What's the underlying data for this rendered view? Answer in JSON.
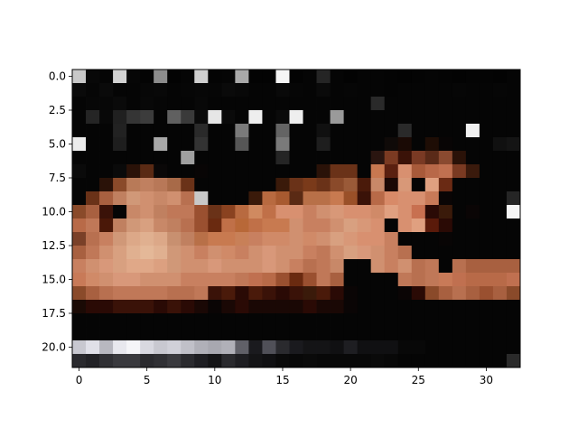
{
  "chart_data": {
    "type": "heatmap",
    "title": "",
    "xlabel": "",
    "ylabel": "",
    "x_range": [
      -0.5,
      32.5
    ],
    "y_range": [
      21.5,
      -0.5
    ],
    "x_ticks": [
      0,
      5,
      10,
      15,
      20,
      25,
      30
    ],
    "x_tick_labels": [
      "0",
      "5",
      "10",
      "15",
      "20",
      "25",
      "30"
    ],
    "y_ticks": [
      0.0,
      2.5,
      5.0,
      7.5,
      10.0,
      12.5,
      15.0,
      17.5,
      20.0
    ],
    "y_tick_labels": [
      "0.0",
      "2.5",
      "5.0",
      "7.5",
      "10.0",
      "12.5",
      "15.0",
      "17.5",
      "20.0"
    ],
    "grid": false,
    "colormap_note": "RGB image pixels",
    "rows": 22,
    "cols": 33,
    "pixels": [
      [
        "#c8c8c8",
        "#080808",
        "#050505",
        "#d2d2d2",
        "#060606",
        "#040404",
        "#8c8c8c",
        "#030303",
        "#050505",
        "#cfcfcf",
        "#040404",
        "#050505",
        "#a9a9a9",
        "#030303",
        "#030303",
        "#f5f5f5",
        "#030303",
        "#050505",
        "#252525",
        "#050505",
        "#030303",
        "#050505",
        "#050505",
        "#040404",
        "#030303",
        "#040404",
        "#050505",
        "#040404",
        "#030303",
        "#040404",
        "#040404",
        "#030303",
        "#050505"
      ],
      [
        "#0a0a0a",
        "#060606",
        "#0a0a0a",
        "#050505",
        "#050505",
        "#070707",
        "#080808",
        "#050505",
        "#060606",
        "#070707",
        "#060606",
        "#0a0a0a",
        "#080808",
        "#050505",
        "#050505",
        "#090909",
        "#060606",
        "#050505",
        "#0a0a0a",
        "#050505",
        "#060606",
        "#050505",
        "#050505",
        "#040404",
        "#050505",
        "#050505",
        "#050505",
        "#050505",
        "#060606",
        "#050505",
        "#050505",
        "#060606",
        "#050505"
      ],
      [
        "#050505",
        "#070707",
        "#070707",
        "#0a0a0a",
        "#050505",
        "#080808",
        "#060606",
        "#050505",
        "#050505",
        "#080808",
        "#050505",
        "#050505",
        "#050505",
        "#050505",
        "#050505",
        "#050505",
        "#050505",
        "#050505",
        "#050505",
        "#050505",
        "#050505",
        "#050505",
        "#2a2a2a",
        "#050505",
        "#050505",
        "#050505",
        "#050505",
        "#050505",
        "#050505",
        "#050505",
        "#050505",
        "#050505",
        "#050505"
      ],
      [
        "#050505",
        "#252525",
        "#080808",
        "#202020",
        "#353535",
        "#3c3c3c",
        "#050505",
        "#606060",
        "#3a3a3a",
        "#0a0a0a",
        "#e6e6e6",
        "#0a0a0a",
        "#050505",
        "#eeeeee",
        "#050505",
        "#0a0a0a",
        "#eeeeee",
        "#050505",
        "#050505",
        "#9a9a9a",
        "#050505",
        "#050505",
        "#050505",
        "#050505",
        "#050505",
        "#050505",
        "#050505",
        "#050505",
        "#050505",
        "#050505",
        "#050505",
        "#050505",
        "#050505"
      ],
      [
        "#050505",
        "#050505",
        "#050505",
        "#222222",
        "#050505",
        "#050505",
        "#050505",
        "#050505",
        "#050505",
        "#2a2a2a",
        "#050505",
        "#050505",
        "#7a7a7a",
        "#050505",
        "#050505",
        "#646464",
        "#050505",
        "#050505",
        "#101010",
        "#050505",
        "#050505",
        "#050505",
        "#050505",
        "#050505",
        "#2a2a2a",
        "#050505",
        "#050505",
        "#050505",
        "#050505",
        "#f0f0f0",
        "#050505",
        "#050505",
        "#050505"
      ],
      [
        "#ececec",
        "#050505",
        "#050505",
        "#1e1e1e",
        "#050505",
        "#050505",
        "#a8a8a8",
        "#050505",
        "#050505",
        "#333333",
        "#050505",
        "#050505",
        "#565656",
        "#050505",
        "#050505",
        "#7a7a7a",
        "#050505",
        "#050505",
        "#1e1e1e",
        "#050505",
        "#050505",
        "#050505",
        "#050505",
        "#0f0a08",
        "#1a0a05",
        "#050505",
        "#1e0d05",
        "#080505",
        "#050505",
        "#050505",
        "#050505",
        "#101010",
        "#141414"
      ],
      [
        "#050505",
        "#050505",
        "#050505",
        "#050505",
        "#050505",
        "#050505",
        "#050505",
        "#050505",
        "#a0a0a0",
        "#050505",
        "#050505",
        "#050505",
        "#050505",
        "#050505",
        "#050505",
        "#252525",
        "#050505",
        "#050505",
        "#050505",
        "#050505",
        "#050505",
        "#050505",
        "#2a1510",
        "#7a3a22",
        "#3a1208",
        "#7a3a24",
        "#5a2a18",
        "#8a4a30",
        "#2a1208",
        "#050505",
        "#050505",
        "#050505",
        "#050505"
      ],
      [
        "#0a0a0a",
        "#050505",
        "#050505",
        "#0a0a0a",
        "#2a1208",
        "#5a2a14",
        "#0a0808",
        "#050505",
        "#050505",
        "#080505",
        "#050505",
        "#050505",
        "#050505",
        "#050505",
        "#050505",
        "#050505",
        "#050505",
        "#050505",
        "#2a1208",
        "#6a3218",
        "#6a3218",
        "#050505",
        "#c87850",
        "#5a2010",
        "#d89070",
        "#a85a3a",
        "#b86848",
        "#c07050",
        "#7a3a22",
        "#3a1a0c",
        "#050505",
        "#050505",
        "#050505"
      ],
      [
        "#050505",
        "#050505",
        "#2a1208",
        "#8a4a2a",
        "#b87a58",
        "#c08060",
        "#b87858",
        "#a86a48",
        "#6a3218",
        "#050505",
        "#050505",
        "#050505",
        "#050505",
        "#050505",
        "#050505",
        "#3a1a0a",
        "#6a3218",
        "#7a3a1a",
        "#6a3218",
        "#8a4a2a",
        "#9a5a38",
        "#4a1a0a",
        "#c88868",
        "#1a0805",
        "#d89878",
        "#050505",
        "#e0a080",
        "#6a2a14",
        "#050505",
        "#050505",
        "#050505",
        "#050505",
        "#050505"
      ],
      [
        "#050505",
        "#6a3218",
        "#a86040",
        "#c08060",
        "#d09878",
        "#d09070",
        "#c88868",
        "#d09070",
        "#b87050",
        "#c8c8c8",
        "#050505",
        "#050505",
        "#050505",
        "#3a1a0a",
        "#b86a40",
        "#a85a30",
        "#5a2a14",
        "#b87048",
        "#b87048",
        "#c87a50",
        "#9a5028",
        "#3a1208",
        "#b86a48",
        "#d88a68",
        "#d89070",
        "#d89070",
        "#c87a58",
        "#0a0505",
        "#050505",
        "#050505",
        "#050505",
        "#050505",
        "#252525"
      ],
      [
        "#8a4a2a",
        "#a86040",
        "#3a1208",
        "#050505",
        "#c88868",
        "#d09070",
        "#c08060",
        "#c07858",
        "#c07858",
        "#9a5030",
        "#6a3218",
        "#8a4220",
        "#b86a40",
        "#d08a60",
        "#c07048",
        "#d89070",
        "#d89070",
        "#c88060",
        "#d09070",
        "#d89878",
        "#d89070",
        "#d89070",
        "#d08a68",
        "#e0a080",
        "#d89070",
        "#c87050",
        "#2a0a05",
        "#3a1a0a",
        "#050505",
        "#0a0505",
        "#050505",
        "#050505",
        "#f5f5f5"
      ],
      [
        "#b86a48",
        "#c07858",
        "#4a1808",
        "#c08060",
        "#d09878",
        "#d8a080",
        "#c88868",
        "#c08060",
        "#b87050",
        "#9a5030",
        "#6a2a10",
        "#c07048",
        "#b86838",
        "#c07048",
        "#c87a50",
        "#c87a50",
        "#d09070",
        "#c88060",
        "#c88060",
        "#d09070",
        "#d8a080",
        "#d89878",
        "#d89070",
        "#050505",
        "#d89070",
        "#e0a080",
        "#5a1a0a",
        "#2a0a05",
        "#050505",
        "#050505",
        "#050505",
        "#050505",
        "#050505"
      ],
      [
        "#7a4028",
        "#b87050",
        "#c88060",
        "#d09878",
        "#dca888",
        "#e0b090",
        "#dca888",
        "#c89070",
        "#c08060",
        "#b87048",
        "#c87a50",
        "#c87a50",
        "#c88058",
        "#c88060",
        "#d08a68",
        "#d08a68",
        "#d09070",
        "#d08a68",
        "#d09070",
        "#d8a080",
        "#d89878",
        "#d89070",
        "#d89070",
        "#c88060",
        "#050505",
        "#050505",
        "#050505",
        "#080505",
        "#050505",
        "#050505",
        "#050505",
        "#050505",
        "#050505"
      ],
      [
        "#a86040",
        "#c07858",
        "#d09070",
        "#d8a080",
        "#e0b090",
        "#e4b898",
        "#e0b090",
        "#d09878",
        "#d09070",
        "#c88060",
        "#d09070",
        "#d08a68",
        "#c88060",
        "#d09070",
        "#d8987a",
        "#d09070",
        "#d09070",
        "#c88060",
        "#c07858",
        "#d09070",
        "#d8a080",
        "#d8987a",
        "#d09070",
        "#c88060",
        "#b87050",
        "#050505",
        "#050505",
        "#050505",
        "#050505",
        "#050505",
        "#050505",
        "#050505",
        "#050505"
      ],
      [
        "#c88060",
        "#d09070",
        "#d8987a",
        "#d8a080",
        "#e0a888",
        "#e0a888",
        "#dca080",
        "#d09878",
        "#d09070",
        "#d09070",
        "#d8987a",
        "#d09070",
        "#d09070",
        "#d09070",
        "#d8987a",
        "#d09070",
        "#c88060",
        "#b87050",
        "#c07858",
        "#c88868",
        "#050505",
        "#050505",
        "#d09070",
        "#c88060",
        "#d09070",
        "#b87050",
        "#c07858",
        "#050505",
        "#b87050",
        "#a86040",
        "#a86040",
        "#a86040",
        "#a86040"
      ],
      [
        "#c87a58",
        "#d08a68",
        "#d09070",
        "#d8987a",
        "#d8987a",
        "#d09070",
        "#d09070",
        "#d09070",
        "#c88060",
        "#c88060",
        "#c88060",
        "#c88060",
        "#c07858",
        "#c07050",
        "#b86a48",
        "#9a5030",
        "#6a2a10",
        "#9a5030",
        "#c07858",
        "#a86040",
        "#050505",
        "#050505",
        "#050505",
        "#050505",
        "#c07858",
        "#b87050",
        "#c07858",
        "#c87a58",
        "#c07050",
        "#b86a48",
        "#b86a48",
        "#b86a48",
        "#c07050"
      ],
      [
        "#8a4a2a",
        "#a86040",
        "#b87050",
        "#c07858",
        "#c07858",
        "#c07858",
        "#c07858",
        "#b87050",
        "#b87050",
        "#c07858",
        "#3a1208",
        "#4a1a0a",
        "#2a0a05",
        "#4a1a0a",
        "#3a1208",
        "#2a0a05",
        "#3a1208",
        "#3a1a0a",
        "#4a1a0a",
        "#2a0a05",
        "#0a0505",
        "#050505",
        "#050505",
        "#050505",
        "#0a0505",
        "#2a0a05",
        "#8a4a2a",
        "#a86040",
        "#b87050",
        "#a86040",
        "#9a5030",
        "#a86040",
        "#8a4a2a"
      ],
      [
        "#1a0a05",
        "#2a0a05",
        "#2a0a05",
        "#3a1208",
        "#3a1208",
        "#3a1208",
        "#2a0a05",
        "#3a1208",
        "#2a0a05",
        "#1a0805",
        "#0a0505",
        "#1a0805",
        "#2a0a05",
        "#1a0805",
        "#1a0805",
        "#1a0805",
        "#1a0805",
        "#2a0a05",
        "#1a0805",
        "#1a0805",
        "#0a0505",
        "#050505",
        "#050505",
        "#050505",
        "#050505",
        "#050505",
        "#050505",
        "#050505",
        "#050505",
        "#050505",
        "#050505",
        "#050505",
        "#050505"
      ],
      [
        "#050505",
        "#050505",
        "#050505",
        "#050505",
        "#050505",
        "#050505",
        "#050505",
        "#050505",
        "#050505",
        "#050505",
        "#050505",
        "#050505",
        "#050505",
        "#050505",
        "#050505",
        "#050505",
        "#050505",
        "#050505",
        "#050505",
        "#050505",
        "#050505",
        "#050505",
        "#050505",
        "#050505",
        "#050505",
        "#050505",
        "#050505",
        "#050505",
        "#050505",
        "#050505",
        "#050505",
        "#050505",
        "#050505"
      ],
      [
        "#050505",
        "#050505",
        "#050505",
        "#050505",
        "#050505",
        "#050505",
        "#050505",
        "#050505",
        "#050505",
        "#050505",
        "#050505",
        "#050505",
        "#050505",
        "#050505",
        "#050505",
        "#050505",
        "#050505",
        "#050505",
        "#050505",
        "#050505",
        "#050505",
        "#050505",
        "#050505",
        "#050505",
        "#050505",
        "#050505",
        "#050505",
        "#050505",
        "#050505",
        "#050505",
        "#050505",
        "#050505",
        "#050505"
      ],
      [
        "#c8c8d0",
        "#e0e0e8",
        "#b8b8c0",
        "#e8e8ee",
        "#f5f5f8",
        "#d8d8e0",
        "#c8c8d0",
        "#d0d0d8",
        "#c0c0c8",
        "#b0b0b8",
        "#a8a8b0",
        "#b0b0b8",
        "#606068",
        "#1a1a1e",
        "#505058",
        "#2a2a2e",
        "#1a1a1e",
        "#141416",
        "#141416",
        "#101012",
        "#1e1e22",
        "#101012",
        "#101012",
        "#101012",
        "#080808",
        "#080808",
        "#050505",
        "#050505",
        "#050505",
        "#050505",
        "#050505",
        "#050505",
        "#050505"
      ],
      [
        "#2a2a2e",
        "#222226",
        "#303034",
        "#3a3a3e",
        "#3a3a3e",
        "#2a2a2e",
        "#303034",
        "#3a3a3e",
        "#2a2a2e",
        "#1e1e22",
        "#141416",
        "#2a2a2e",
        "#1e1e22",
        "#141416",
        "#101012",
        "#0a0a0a",
        "#080808",
        "#0a0a0a",
        "#080808",
        "#080808",
        "#080808",
        "#080808",
        "#0a0a0a",
        "#080808",
        "#050505",
        "#050505",
        "#050505",
        "#050505",
        "#050505",
        "#050505",
        "#050505",
        "#050505",
        "#2a2a2a"
      ]
    ]
  }
}
